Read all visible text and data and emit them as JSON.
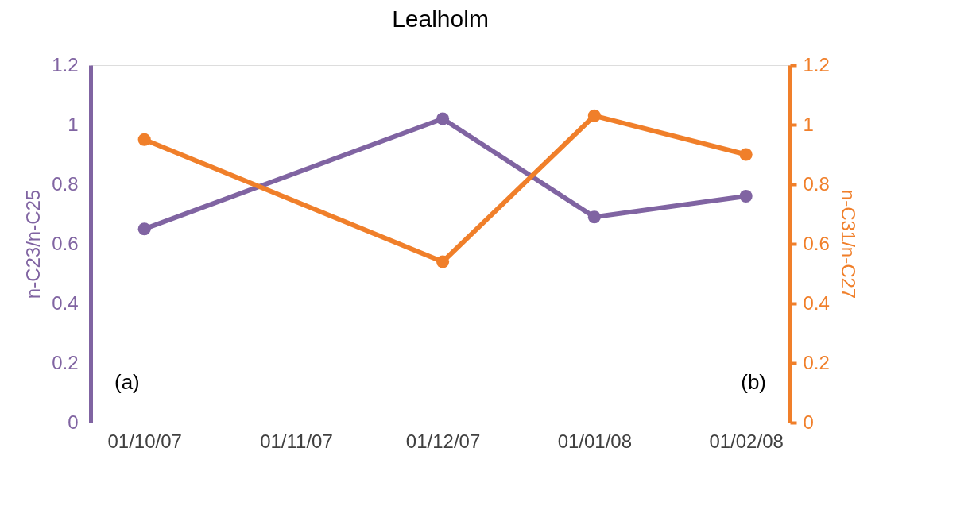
{
  "chart_data": {
    "type": "line",
    "title": "Lealholm",
    "x": [
      "2007-10-01",
      "2007-12-01",
      "2008-01-01",
      "2008-02-01"
    ],
    "xlim": [
      "2007-09-20",
      "2008-02-10"
    ],
    "xticks": [
      {
        "value": "2007-10-01",
        "label": "01/10/07"
      },
      {
        "value": "2007-11-01",
        "label": "01/11/07"
      },
      {
        "value": "2007-12-01",
        "label": "01/12/07"
      },
      {
        "value": "2008-01-01",
        "label": "01/01/08"
      },
      {
        "value": "2008-02-01",
        "label": "01/02/08"
      }
    ],
    "ylabel": "n-C23/n-C25",
    "y2label": "n-C31/n-C27",
    "ylim": [
      0,
      1.2
    ],
    "yticks": [
      0,
      0.2,
      0.4,
      0.6,
      0.8,
      1,
      1.2
    ],
    "y2lim": [
      0,
      1.2
    ],
    "y2ticks": [
      0,
      0.2,
      0.4,
      0.6,
      0.8,
      1,
      1.2
    ],
    "series": [
      {
        "color": "#8064a2",
        "values": [
          0.65,
          1.02,
          0.69,
          0.76
        ]
      },
      {
        "color": "#f07f2a",
        "axis": "y2",
        "values": [
          0.95,
          0.54,
          1.03,
          0.9
        ]
      }
    ],
    "annotations": [
      "(a)",
      "(b)"
    ],
    "marker": "circle",
    "line_style": "solid",
    "grid": false
  }
}
